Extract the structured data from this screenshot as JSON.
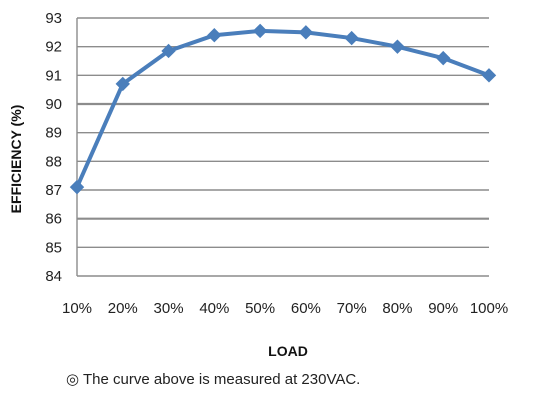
{
  "chart_data": {
    "type": "line",
    "categories": [
      "10%",
      "20%",
      "30%",
      "40%",
      "50%",
      "60%",
      "70%",
      "80%",
      "90%",
      "100%"
    ],
    "series": [
      {
        "values": [
          87.1,
          90.7,
          91.85,
          92.4,
          92.55,
          92.5,
          92.3,
          92.0,
          91.6,
          91.0
        ],
        "color": "#4a7ebb",
        "marker": "diamond"
      }
    ],
    "title": "",
    "xlabel": "LOAD",
    "ylabel": "EFFICIENCY (%)",
    "ylim": [
      84,
      93
    ],
    "yticks": [
      84,
      85,
      86,
      87,
      88,
      89,
      90,
      91,
      92,
      93
    ],
    "grid": "horizontal",
    "grid_color": "#8c8c8c"
  },
  "note": "◎ The curve above is measured at 230VAC."
}
